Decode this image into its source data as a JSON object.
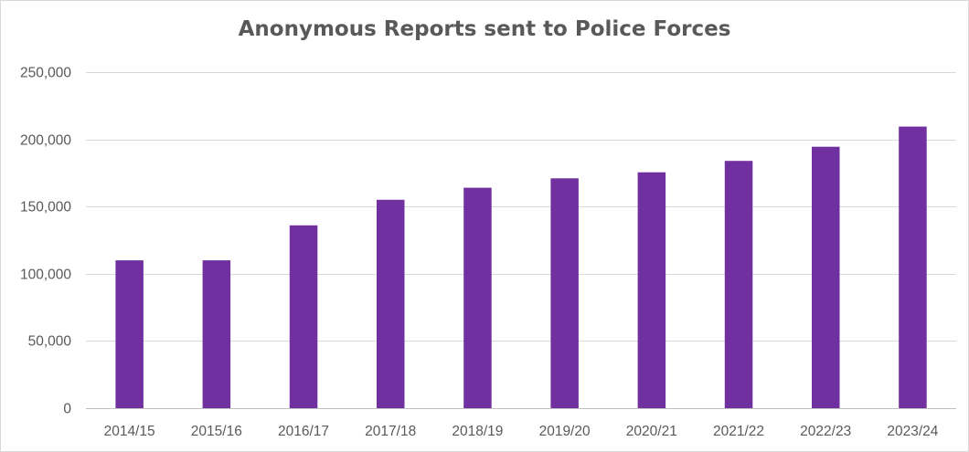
{
  "chart_data": {
    "type": "bar",
    "title": "Anonymous Reports sent to Police Forces",
    "xlabel": "",
    "ylabel": "",
    "categories": [
      "2014/15",
      "2015/16",
      "2016/17",
      "2017/18",
      "2018/19",
      "2019/20",
      "2020/21",
      "2021/22",
      "2022/23",
      "2023/24"
    ],
    "values": [
      110000,
      110000,
      136000,
      155000,
      164000,
      171000,
      175500,
      184000,
      194500,
      209500
    ],
    "ylim": [
      0,
      250000
    ],
    "yticks": [
      0,
      50000,
      100000,
      150000,
      200000,
      250000
    ],
    "ytick_labels": [
      "0",
      "50,000",
      "100,000",
      "150,000",
      "200,000",
      "250,000"
    ],
    "grid": true,
    "legend": "none",
    "colors": {
      "bar": "#7030a0",
      "grid": "#d9d9d9",
      "text": "#595959"
    }
  }
}
